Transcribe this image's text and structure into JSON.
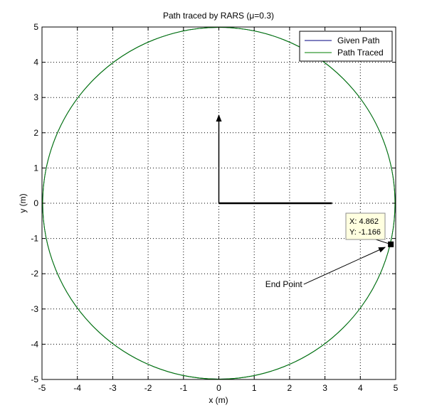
{
  "chart_data": {
    "type": "line",
    "title": "Path traced by RARS (μ=0.3)",
    "xlabel": "x (m)",
    "ylabel": "y (m)",
    "xlim": [
      -5,
      5
    ],
    "ylim": [
      -5,
      5
    ],
    "xticks": [
      "-5",
      "-4",
      "-3",
      "-2",
      "-1",
      "0",
      "1",
      "2",
      "3",
      "4",
      "5"
    ],
    "yticks": [
      "-5",
      "-4",
      "-3",
      "-2",
      "-1",
      "0",
      "1",
      "2",
      "3",
      "4",
      "5"
    ],
    "grid": true,
    "legend_position": "top-right",
    "series": [
      {
        "name": "Given Path",
        "color": "#00007f",
        "kind": "circle",
        "center": [
          0,
          0
        ],
        "radius": 4.98
      },
      {
        "name": "Path Traced",
        "color": "#007f00",
        "kind": "circle",
        "center": [
          0,
          0
        ],
        "radius": 4.98
      }
    ],
    "heading_arrows": {
      "origin": [
        0,
        0
      ],
      "x_end": [
        3.2,
        0
      ],
      "y_end": [
        0,
        2.5
      ]
    },
    "datatip": {
      "x_label": "X: 4.862",
      "y_label": "Y: -1.166",
      "point": [
        4.862,
        -1.166
      ]
    },
    "annotation": {
      "text": "End Point",
      "tail": [
        2.4,
        -2.3
      ],
      "head": [
        4.7,
        -1.25
      ]
    }
  }
}
